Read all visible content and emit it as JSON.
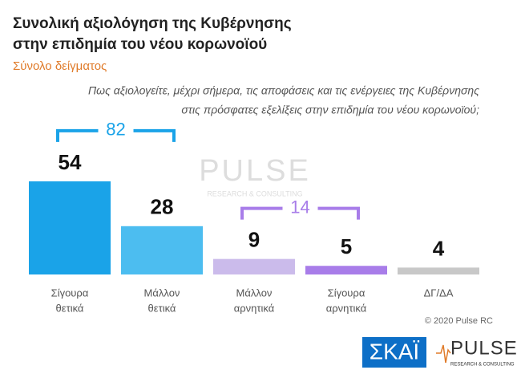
{
  "chart_data": {
    "type": "bar",
    "title": [
      "Συνολική αξιολόγηση της Κυβέρνησης",
      "στην επιδημία του νέου κορωνοϊού"
    ],
    "subtitle": "Σύνολο δείγματος",
    "question": [
      "Πως αξιολογείτε, μέχρι σήμερα, τις αποφάσεις και τις ενέργειες της Κυβέρνησης",
      "στις πρόσφατες εξελίξεις στην επιδημία του νέου κορωνοϊού;"
    ],
    "categories": [
      [
        "Σίγουρα",
        "θετικά"
      ],
      [
        "Μάλλον",
        "θετικά"
      ],
      [
        "Μάλλον",
        "αρνητικά"
      ],
      [
        "Σίγουρα",
        "αρνητικά"
      ],
      [
        "ΔΓ/ΔΑ"
      ]
    ],
    "values": [
      54,
      28,
      9,
      5,
      4
    ],
    "colors": [
      "#1aa3e8",
      "#4cbdf0",
      "#cbbbeb",
      "#a87de9",
      "#c8c8c8"
    ],
    "group_totals": [
      {
        "value": 82,
        "color": "#1aa3e8"
      },
      {
        "value": 14,
        "color": "#a87de9"
      }
    ],
    "credit": "© 2020 Pulse RC",
    "logos": {
      "channel": "ΣΚΑΪ",
      "pollster": "PULSE",
      "pollster_tagline": "RESEARCH & CONSULTING"
    }
  }
}
